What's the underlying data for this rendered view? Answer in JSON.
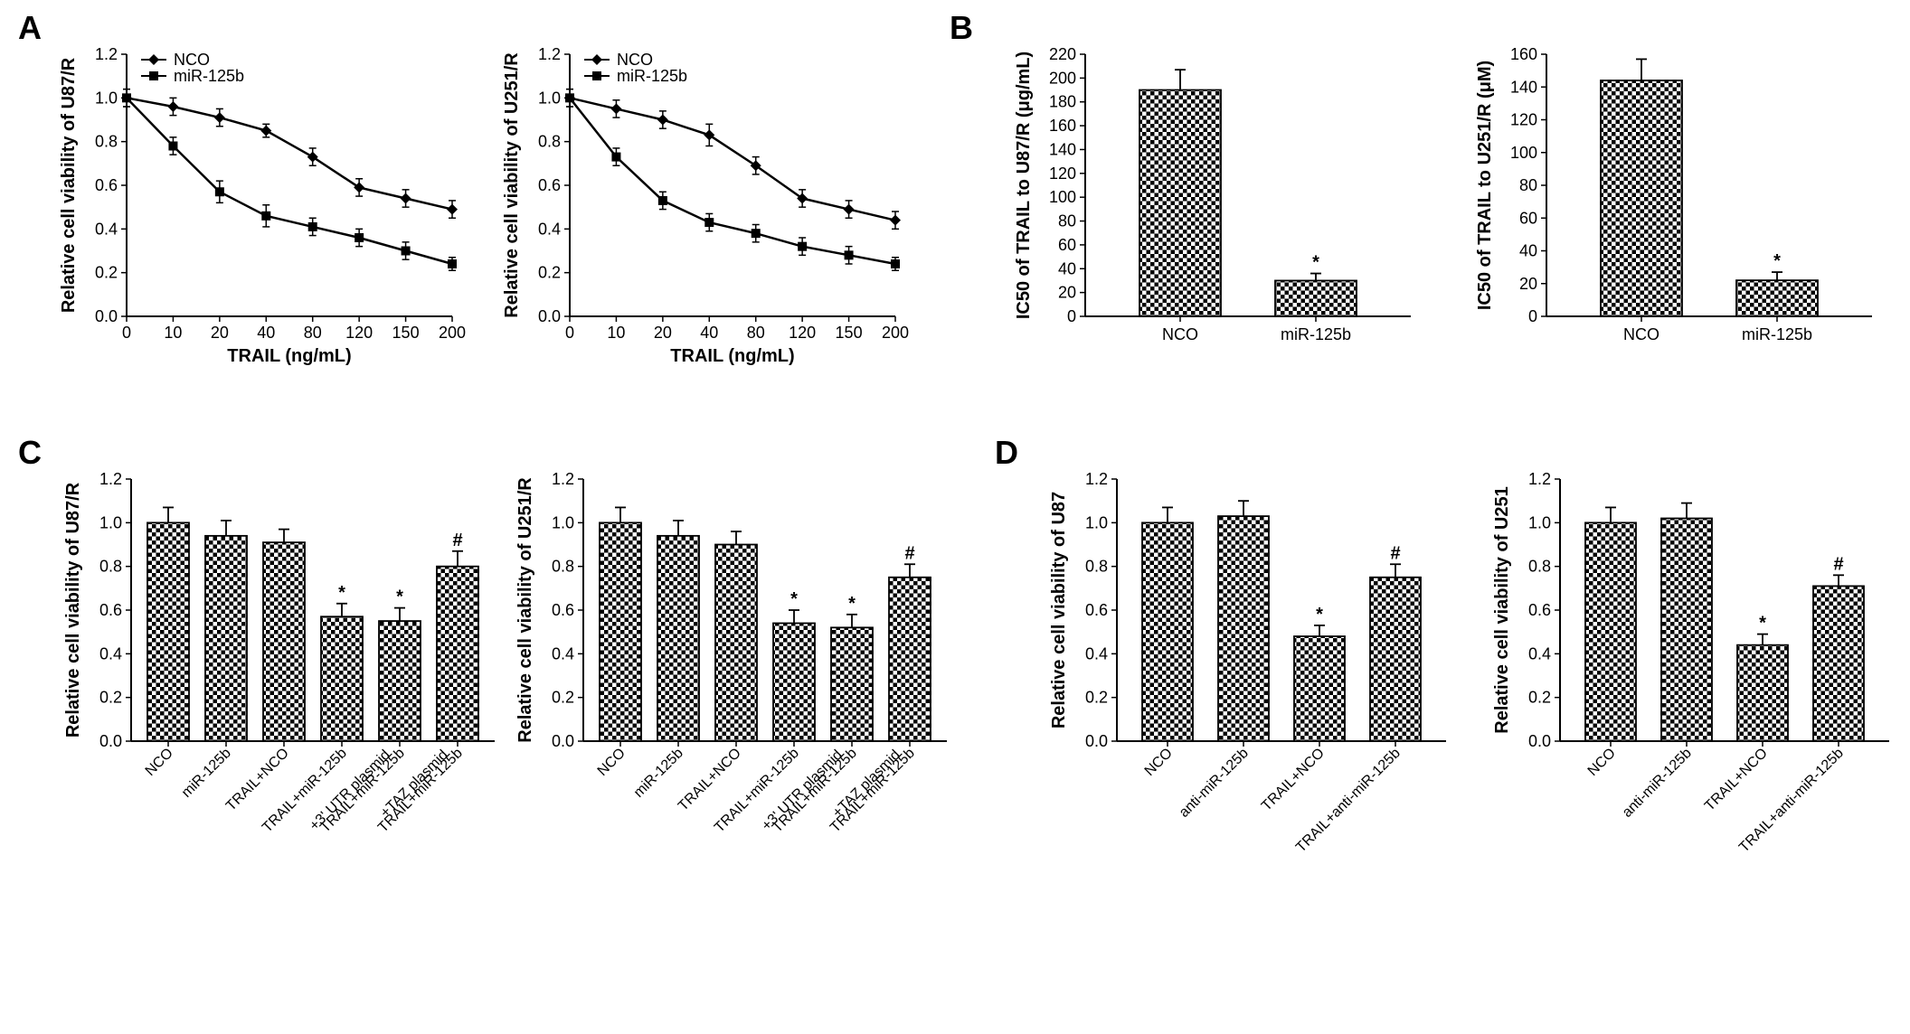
{
  "panels": {
    "A": "A",
    "B": "B",
    "C": "C",
    "D": "D"
  },
  "colors": {
    "bg": "#ffffff",
    "fg": "#000000",
    "pattern": "#000000"
  },
  "fontsize": {
    "label": 36,
    "axis": 20,
    "tick": 18
  },
  "lineA": {
    "type": "line",
    "legend": [
      "NCO",
      "miR-125b"
    ],
    "marker": [
      "diamond",
      "square"
    ],
    "x_ticks": [
      0,
      10,
      20,
      40,
      80,
      120,
      150,
      200
    ],
    "xlabel": "TRAIL (ng/mL)",
    "left": {
      "ylabel": "Relative cell viability of U87/R",
      "ylim": [
        0,
        1.2
      ],
      "ytick": 0.2,
      "nco": [
        1.0,
        0.96,
        0.91,
        0.85,
        0.73,
        0.59,
        0.54,
        0.49
      ],
      "mir": [
        1.0,
        0.78,
        0.57,
        0.46,
        0.41,
        0.36,
        0.3,
        0.24
      ],
      "err_nco": [
        0.04,
        0.04,
        0.04,
        0.03,
        0.04,
        0.04,
        0.04,
        0.04
      ],
      "err_mir": [
        0.04,
        0.04,
        0.05,
        0.05,
        0.04,
        0.04,
        0.04,
        0.03
      ]
    },
    "right": {
      "ylabel": "Relative cell viability of U251/R",
      "ylim": [
        0,
        1.2
      ],
      "ytick": 0.2,
      "nco": [
        1.0,
        0.95,
        0.9,
        0.83,
        0.69,
        0.54,
        0.49,
        0.44
      ],
      "mir": [
        1.0,
        0.73,
        0.53,
        0.43,
        0.38,
        0.32,
        0.28,
        0.24
      ],
      "err_nco": [
        0.04,
        0.04,
        0.04,
        0.05,
        0.04,
        0.04,
        0.04,
        0.04
      ],
      "err_mir": [
        0.04,
        0.04,
        0.04,
        0.04,
        0.04,
        0.04,
        0.04,
        0.03
      ]
    }
  },
  "barB": {
    "type": "bar",
    "xlabels": [
      "NCO",
      "miR-125b"
    ],
    "bar_width": 0.5,
    "left": {
      "ylabel": "IC50 of TRAIL to U87/R (μg/mL)",
      "ylim": [
        0,
        220
      ],
      "ytick": 20,
      "values": [
        190,
        30
      ],
      "err": [
        17,
        6
      ],
      "sig": [
        "",
        "*"
      ]
    },
    "right": {
      "ylabel": "IC50 of TRAIL to U251/R (μM)",
      "ylim": [
        0,
        160
      ],
      "ytick": 20,
      "values": [
        144,
        22
      ],
      "err": [
        13,
        5
      ],
      "sig": [
        "",
        "*"
      ]
    }
  },
  "barC": {
    "type": "bar",
    "xlabels": [
      "NCO",
      "miR-125b",
      "TRAIL+NCO",
      "TRAIL+miR-125b",
      "TRAIL+miR-125b +3' UTR plasmid",
      "TRAIL+miR-125b +TAZ plasmid"
    ],
    "left": {
      "ylabel": "Relative cell viability of U87/R",
      "ylim": [
        0,
        1.2
      ],
      "ytick": 0.2,
      "values": [
        1.0,
        0.94,
        0.91,
        0.57,
        0.55,
        0.8
      ],
      "err": [
        0.07,
        0.07,
        0.06,
        0.06,
        0.06,
        0.07
      ],
      "sig": [
        "",
        "",
        "",
        "*",
        "*",
        "#"
      ]
    },
    "right": {
      "ylabel": "Relative cell viability of U251/R",
      "ylim": [
        0,
        1.2
      ],
      "ytick": 0.2,
      "values": [
        1.0,
        0.94,
        0.9,
        0.54,
        0.52,
        0.75
      ],
      "err": [
        0.07,
        0.07,
        0.06,
        0.06,
        0.06,
        0.06
      ],
      "sig": [
        "",
        "",
        "",
        "*",
        "*",
        "#"
      ]
    }
  },
  "barD": {
    "type": "bar",
    "xlabels": [
      "NCO",
      "anti-miR-125b",
      "TRAIL+NCO",
      "TRAIL+anti-miR-125b"
    ],
    "left": {
      "ylabel": "Relative cell viability of U87",
      "ylim": [
        0,
        1.2
      ],
      "ytick": 0.2,
      "values": [
        1.0,
        1.03,
        0.48,
        0.75
      ],
      "err": [
        0.07,
        0.07,
        0.05,
        0.06
      ],
      "sig": [
        "",
        "",
        "*",
        "#"
      ]
    },
    "right": {
      "ylabel": "Relative cell viability of U251",
      "ylim": [
        0,
        1.2
      ],
      "ytick": 0.2,
      "values": [
        1.0,
        1.02,
        0.44,
        0.71
      ],
      "err": [
        0.07,
        0.07,
        0.05,
        0.05
      ],
      "sig": [
        "",
        "",
        "*",
        "#"
      ]
    }
  }
}
